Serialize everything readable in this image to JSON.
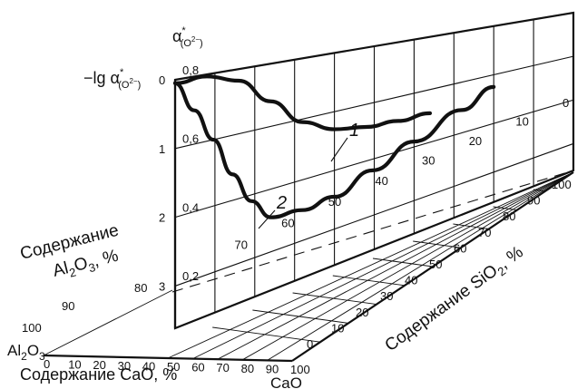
{
  "chart_data": {
    "type": "line",
    "left_axis_title": "−lg α*(O2−)",
    "top_axis_title": "α*(O2−)",
    "left_axis_ticks": [
      "0",
      "1",
      "2",
      "3"
    ],
    "top_axis_ticks": [
      "0,8",
      "0,6",
      "0,4",
      "0,2"
    ],
    "y_range": [
      0,
      3
    ],
    "cao_axis": {
      "title": "Содержание CaO, %",
      "end_label": "CaO",
      "ticks": [
        "0",
        "10",
        "20",
        "30",
        "40",
        "50",
        "60",
        "70",
        "80",
        "90",
        "100"
      ]
    },
    "al2o3_axis": {
      "title_line1": "Содержание",
      "title_line2": "Al2O3, %",
      "end_label": "Al2O3",
      "ticks": [
        "80",
        "90",
        "100"
      ]
    },
    "sio2_axis": {
      "title": "Содержание SiO2, %",
      "ticks": [
        "0",
        "10",
        "20",
        "30",
        "40",
        "50",
        "60",
        "70",
        "80",
        "90",
        "100"
      ]
    },
    "back_plane_ticks": [
      "0",
      "10",
      "20",
      "30",
      "40",
      "50",
      "60",
      "70"
    ],
    "right_edge_ticks": [
      "80",
      "90",
      "100"
    ],
    "series": [
      {
        "name": "1",
        "points": [
          [
            0,
            0.05
          ],
          [
            10,
            0.03
          ],
          [
            20,
            0.18
          ],
          [
            30,
            0.6
          ],
          [
            40,
            1.05
          ],
          [
            50,
            1.3
          ],
          [
            60,
            1.4
          ],
          [
            70,
            1.44
          ],
          [
            80,
            1.45
          ]
        ]
      },
      {
        "name": "2",
        "points": [
          [
            0,
            0.05
          ],
          [
            6,
            0.5
          ],
          [
            12,
            1.0
          ],
          [
            18,
            1.6
          ],
          [
            24,
            2.1
          ],
          [
            30,
            2.45
          ],
          [
            40,
            2.5
          ],
          [
            50,
            2.45
          ],
          [
            62,
            2.2
          ],
          [
            75,
            1.9
          ],
          [
            90,
            1.55
          ],
          [
            100,
            1.25
          ]
        ]
      }
    ]
  }
}
